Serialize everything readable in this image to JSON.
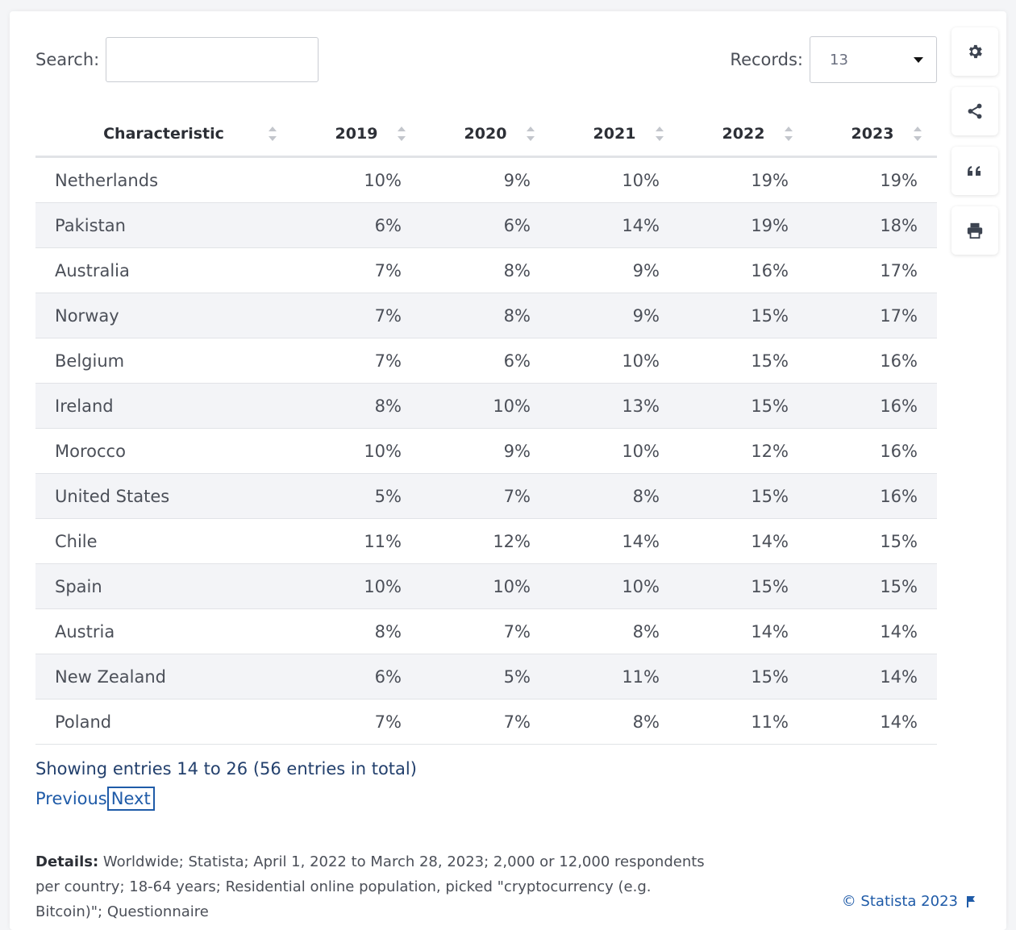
{
  "toolbar": {
    "search_label": "Search:",
    "search_value": "",
    "records_label": "Records:",
    "records_value": "13"
  },
  "side_tools": [
    "gear-icon",
    "share-icon",
    "quote-icon",
    "print-icon"
  ],
  "table": {
    "headers": [
      "Characteristic",
      "2019",
      "2020",
      "2021",
      "2022",
      "2023"
    ],
    "rows": [
      [
        "Netherlands",
        "10%",
        "9%",
        "10%",
        "19%",
        "19%"
      ],
      [
        "Pakistan",
        "6%",
        "6%",
        "14%",
        "19%",
        "18%"
      ],
      [
        "Australia",
        "7%",
        "8%",
        "9%",
        "16%",
        "17%"
      ],
      [
        "Norway",
        "7%",
        "8%",
        "9%",
        "15%",
        "17%"
      ],
      [
        "Belgium",
        "7%",
        "6%",
        "10%",
        "15%",
        "16%"
      ],
      [
        "Ireland",
        "8%",
        "10%",
        "13%",
        "15%",
        "16%"
      ],
      [
        "Morocco",
        "10%",
        "9%",
        "10%",
        "12%",
        "16%"
      ],
      [
        "United States",
        "5%",
        "7%",
        "8%",
        "15%",
        "16%"
      ],
      [
        "Chile",
        "11%",
        "12%",
        "14%",
        "14%",
        "15%"
      ],
      [
        "Spain",
        "10%",
        "10%",
        "10%",
        "15%",
        "15%"
      ],
      [
        "Austria",
        "8%",
        "7%",
        "8%",
        "14%",
        "14%"
      ],
      [
        "New Zealand",
        "6%",
        "5%",
        "11%",
        "15%",
        "14%"
      ],
      [
        "Poland",
        "7%",
        "7%",
        "8%",
        "11%",
        "14%"
      ]
    ]
  },
  "footer": {
    "showing": "Showing entries 14 to 26 (56 entries in total)",
    "previous": "Previous",
    "next": "Next",
    "details_label": "Details:",
    "details_text": "Worldwide; Statista; April 1, 2022 to March 28, 2023; 2,000 or 12,000 respondents per country; 18-64 years; Residential online population, picked \"cryptocurrency (e.g. Bitcoin)\"; Questionnaire",
    "credit": "© Statista 2023"
  },
  "colors": {
    "link": "#1f5ba8",
    "stripe": "#f3f4f7"
  }
}
